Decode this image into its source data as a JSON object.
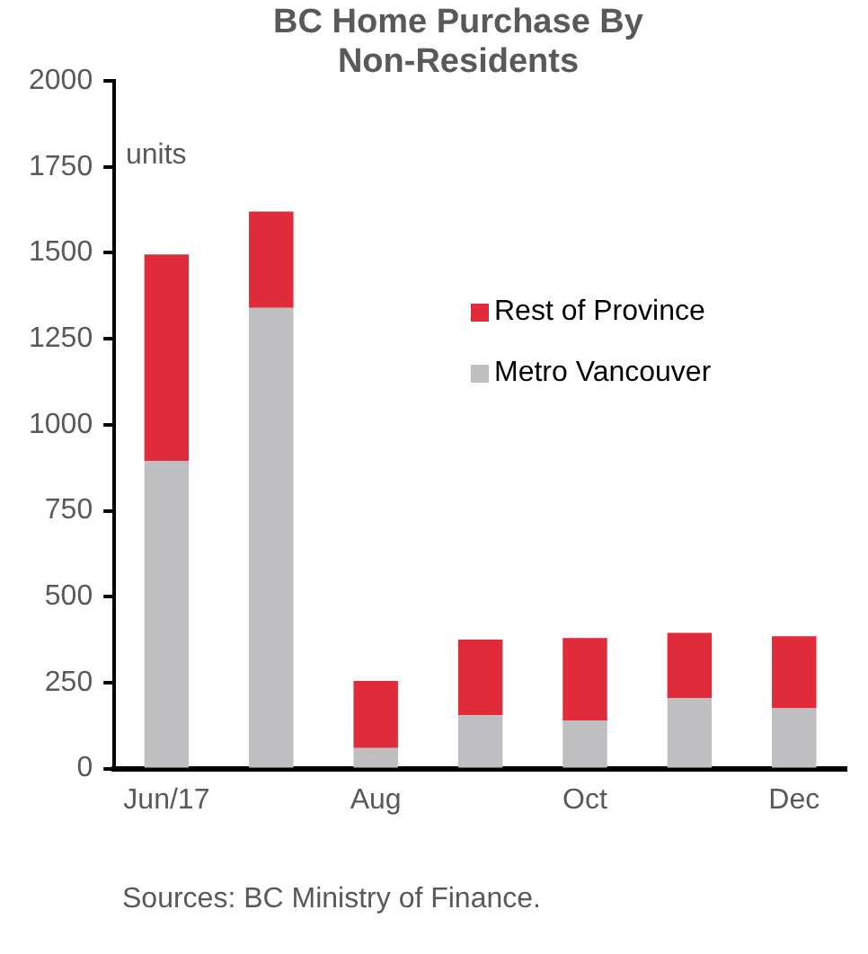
{
  "chart_data": {
    "type": "bar",
    "title": "BC Home Purchase By Non-Residents",
    "categories": [
      "Jun/17",
      null,
      "Aug",
      null,
      "Oct",
      null,
      "Dec"
    ],
    "stacked": true,
    "series": [
      {
        "name": "Metro Vancouver",
        "color": "#bfbfc1",
        "values": [
          895,
          1340,
          60,
          155,
          140,
          205,
          175
        ]
      },
      {
        "name": "Rest of Province",
        "color": "#e02b3a",
        "values": [
          600,
          280,
          195,
          220,
          240,
          190,
          210
        ]
      }
    ],
    "ylim": [
      0,
      2000
    ],
    "yticks": [
      0,
      250,
      500,
      750,
      1000,
      1250,
      1500,
      1750,
      2000
    ],
    "grid": false,
    "legend": "right",
    "annotations": [
      "units",
      "Sources: BC Ministry of Finance."
    ]
  }
}
